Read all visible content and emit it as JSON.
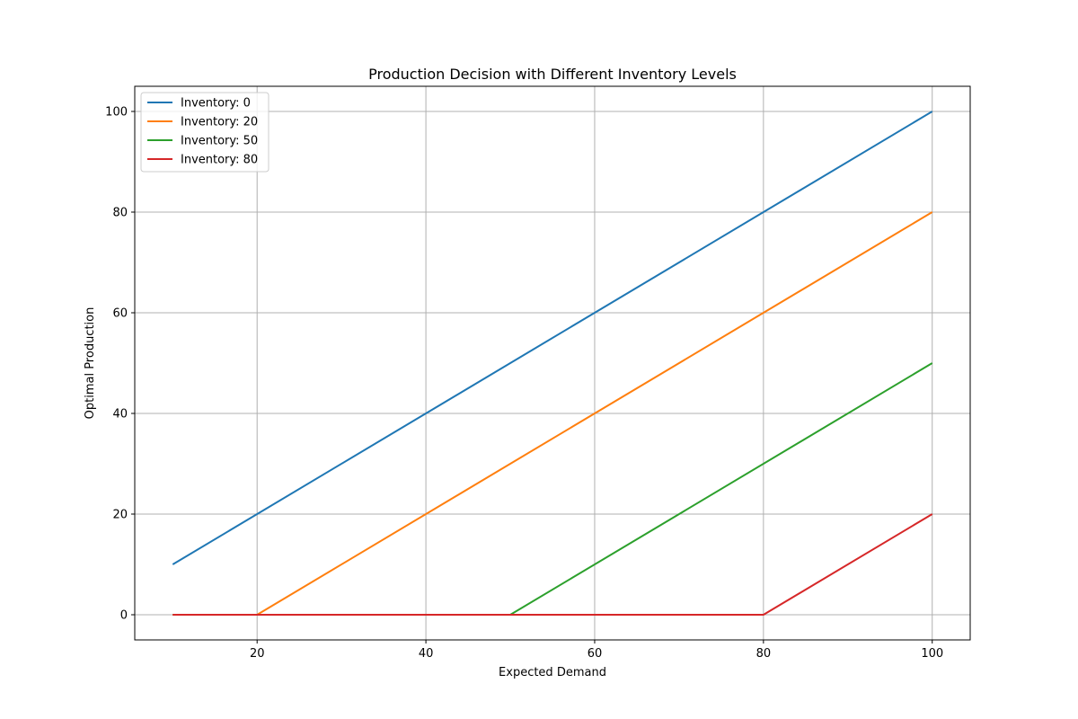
{
  "chart_data": {
    "type": "line",
    "title": "Production Decision with Different Inventory Levels",
    "xlabel": "Expected Demand",
    "ylabel": "Optimal Production",
    "xlim": [
      5.5,
      104.5
    ],
    "ylim": [
      -5,
      105
    ],
    "xticks": [
      20,
      40,
      60,
      80,
      100
    ],
    "yticks": [
      0,
      20,
      40,
      60,
      80,
      100
    ],
    "grid": true,
    "legend_position": "top-left",
    "series": [
      {
        "name": "Inventory: 0",
        "color": "#1f77b4",
        "points": [
          [
            10,
            10
          ],
          [
            100,
            100
          ]
        ]
      },
      {
        "name": "Inventory: 20",
        "color": "#ff7f0e",
        "points": [
          [
            10,
            0
          ],
          [
            20,
            0
          ],
          [
            100,
            80
          ]
        ]
      },
      {
        "name": "Inventory: 50",
        "color": "#2ca02c",
        "points": [
          [
            10,
            0
          ],
          [
            50,
            0
          ],
          [
            100,
            50
          ]
        ]
      },
      {
        "name": "Inventory: 80",
        "color": "#d62728",
        "points": [
          [
            10,
            0
          ],
          [
            80,
            0
          ],
          [
            100,
            20
          ]
        ]
      }
    ]
  }
}
